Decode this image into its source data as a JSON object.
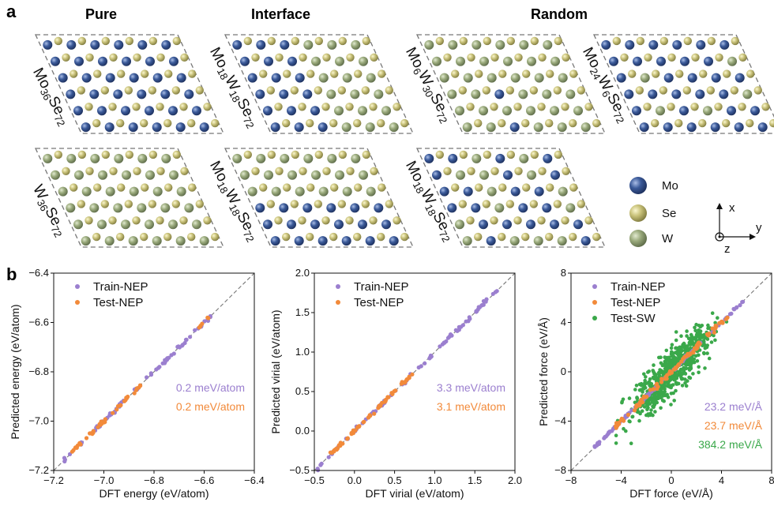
{
  "panel_a": {
    "label": "a",
    "column_titles": [
      "Pure",
      "Interface",
      "Random"
    ],
    "structures": [
      {
        "id": "s1",
        "parts": [
          {
            "t": "Mo"
          },
          {
            "t": "36",
            "sub": true
          },
          {
            "t": "Se"
          },
          {
            "t": "72",
            "sub": true
          }
        ],
        "pattern": "mo"
      },
      {
        "id": "s2",
        "parts": [
          {
            "t": "Mo"
          },
          {
            "t": "18",
            "sub": true
          },
          {
            "t": "W"
          },
          {
            "t": "18",
            "sub": true
          },
          {
            "t": "Se"
          },
          {
            "t": "72",
            "sub": true
          }
        ],
        "pattern": "interface"
      },
      {
        "id": "s3",
        "parts": [
          {
            "t": "Mo"
          },
          {
            "t": "6",
            "sub": true
          },
          {
            "t": "W"
          },
          {
            "t": "30",
            "sub": true
          },
          {
            "t": "Se"
          },
          {
            "t": "72",
            "sub": true
          }
        ],
        "pattern": "random_w"
      },
      {
        "id": "s4",
        "parts": [
          {
            "t": "Mo"
          },
          {
            "t": "24",
            "sub": true
          },
          {
            "t": "W"
          },
          {
            "t": "6",
            "sub": true
          },
          {
            "t": "Se"
          },
          {
            "t": "72",
            "sub": true
          }
        ],
        "pattern": "random_mo"
      },
      {
        "id": "s5",
        "parts": [
          {
            "t": "W"
          },
          {
            "t": "36",
            "sub": true
          },
          {
            "t": "Se"
          },
          {
            "t": "72",
            "sub": true
          }
        ],
        "pattern": "w"
      },
      {
        "id": "s6",
        "parts": [
          {
            "t": "Mo"
          },
          {
            "t": "18",
            "sub": true
          },
          {
            "t": "W"
          },
          {
            "t": "18",
            "sub": true
          },
          {
            "t": "Se"
          },
          {
            "t": "72",
            "sub": true
          }
        ],
        "pattern": "interface2"
      },
      {
        "id": "s7",
        "parts": [
          {
            "t": "Mo"
          },
          {
            "t": "18",
            "sub": true
          },
          {
            "t": "W"
          },
          {
            "t": "18",
            "sub": true
          },
          {
            "t": "Se"
          },
          {
            "t": "72",
            "sub": true
          }
        ],
        "pattern": "random_half"
      }
    ],
    "atom_legend": [
      {
        "label": "Mo",
        "color": "#3b5a99"
      },
      {
        "label": "Se",
        "color": "#c9c27a"
      },
      {
        "label": "W",
        "color": "#9aaa7c"
      }
    ],
    "axes_labels": {
      "x": "x",
      "y": "y",
      "z": "z"
    }
  },
  "panel_b": {
    "label": "b"
  },
  "colors": {
    "train": "#9b7fcf",
    "test_nep": "#f28a3a",
    "test_sw": "#3aa84a",
    "diag": "#777777"
  },
  "chart_data": [
    {
      "type": "scatter",
      "xlabel": "DFT energy (eV/atom)",
      "ylabel": "Predicted energy (eV/atom)",
      "xlim": [
        -7.2,
        -6.4
      ],
      "ylim": [
        -7.2,
        -6.4
      ],
      "xticks": [
        "−7.2",
        "−7.0",
        "−6.8",
        "−6.6",
        "−6.4"
      ],
      "yticks": [
        "−7.2",
        "−7.0",
        "−6.8",
        "−6.6",
        "−6.4"
      ],
      "xtick_values": [
        -7.2,
        -7.0,
        -6.8,
        -6.6,
        -6.4
      ],
      "ytick_values": [
        -7.2,
        -7.0,
        -6.8,
        -6.6,
        -6.4
      ],
      "legend_position": "top-left",
      "series": [
        {
          "name": "Train-NEP",
          "key": "train",
          "range": [
            -7.16,
            -6.57
          ],
          "count": 70,
          "spread": 0.004
        },
        {
          "name": "Test-NEP",
          "key": "test_nep",
          "range": [
            -7.13,
            -6.85
          ],
          "count": 40,
          "spread": 0.004,
          "range2": [
            -6.62,
            -6.58
          ],
          "count2": 6
        }
      ],
      "annotations": [
        {
          "text": "0.2 meV/atom",
          "key": "train"
        },
        {
          "text": "0.2 meV/atom",
          "key": "test_nep"
        }
      ]
    },
    {
      "type": "scatter",
      "xlabel": "DFT virial (eV/atom)",
      "ylabel": "Predicted virial (eV/atom)",
      "xlim": [
        -0.5,
        2.0
      ],
      "ylim": [
        -0.5,
        2.0
      ],
      "xticks": [
        "−0.5",
        "0.0",
        "0.5",
        "1.0",
        "1.5",
        "2.0"
      ],
      "yticks": [
        "−0.5",
        "0.0",
        "0.5",
        "1.0",
        "1.5",
        "2.0"
      ],
      "xtick_values": [
        -0.5,
        0.0,
        0.5,
        1.0,
        1.5,
        2.0
      ],
      "ytick_values": [
        -0.5,
        0.0,
        0.5,
        1.0,
        1.5,
        2.0
      ],
      "legend_position": "top-left",
      "series": [
        {
          "name": "Train-NEP",
          "key": "train",
          "range": [
            -0.48,
            1.78
          ],
          "count": 90,
          "spread": 0.012
        },
        {
          "name": "Test-NEP",
          "key": "test_nep",
          "range": [
            -0.3,
            0.75
          ],
          "count": 60,
          "spread": 0.01
        }
      ],
      "annotations": [
        {
          "text": "3.3 meV/atom",
          "key": "train"
        },
        {
          "text": "3.1 meV/atom",
          "key": "test_nep"
        }
      ]
    },
    {
      "type": "scatter",
      "xlabel": "DFT force (eV/Å)",
      "ylabel": "Predicted force (eV/Å)",
      "xlim": [
        -8,
        8
      ],
      "ylim": [
        -8,
        8
      ],
      "xticks": [
        "−8",
        "−4",
        "0",
        "4",
        "8"
      ],
      "yticks": [
        "−8",
        "−4",
        "0",
        "4",
        "8"
      ],
      "xtick_values": [
        -8,
        -4,
        0,
        4,
        8
      ],
      "ytick_values": [
        -8,
        -4,
        0,
        4,
        8
      ],
      "legend_position": "top-left",
      "series": [
        {
          "name": "Train-NEP",
          "key": "train",
          "range": [
            -6.2,
            5.8
          ],
          "count": 110,
          "spread": 0.05
        },
        {
          "name": "Test-NEP",
          "key": "test_nep",
          "range": [
            -4.6,
            4.6
          ],
          "count": 90,
          "spread": 0.12
        },
        {
          "name": "Test-SW",
          "key": "test_sw",
          "range": [
            -4.4,
            4.4
          ],
          "count": 700,
          "spread": 0.9
        }
      ],
      "annotations": [
        {
          "text": "23.2 meV/Å",
          "key": "train"
        },
        {
          "text": "23.7 meV/Å",
          "key": "test_nep"
        },
        {
          "text": "384.2 meV/Å",
          "key": "test_sw"
        }
      ]
    }
  ]
}
